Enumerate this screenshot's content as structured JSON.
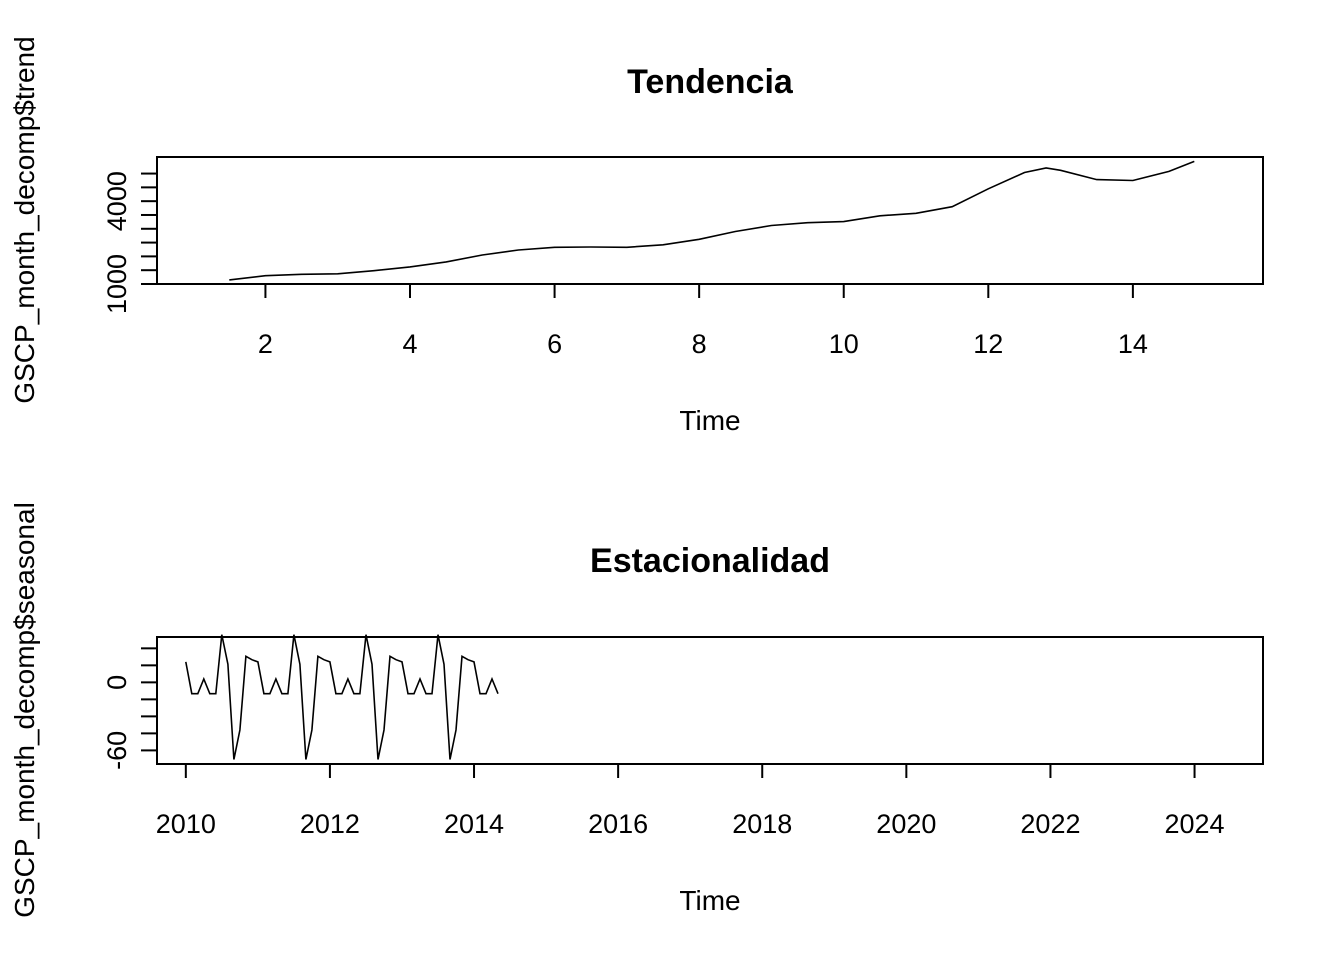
{
  "chart_data": [
    {
      "type": "line",
      "title": "Tendencia",
      "xlabel": "Time",
      "ylabel": "GSCP_month_decomp$trend",
      "xlim": [
        0.5,
        15.8
      ],
      "ylim": [
        1000,
        5600
      ],
      "x_ticks": [
        2,
        4,
        6,
        8,
        10,
        12,
        14
      ],
      "x_tick_labels": [
        "2",
        "4",
        "6",
        "8",
        "10",
        "12",
        "14"
      ],
      "y_minor_ticks": [
        1000,
        1500,
        2000,
        2500,
        3000,
        3500,
        4000,
        4500,
        5000
      ],
      "y_tick_labels": [
        {
          "value": 1000,
          "label": "1000"
        },
        {
          "value": 4000,
          "label": "4000"
        }
      ],
      "series": [
        {
          "x": [
            1.5,
            2.0,
            2.5,
            3.0,
            3.5,
            4.0,
            4.5,
            5.0,
            5.5,
            6.0,
            6.5,
            7.0,
            7.5,
            8.0,
            8.5,
            9.0,
            9.5,
            10.0,
            10.5,
            11.0,
            11.5,
            12.0,
            12.5,
            12.8,
            13.0,
            13.5,
            14.0,
            14.5,
            14.85
          ],
          "y": [
            1150,
            1300,
            1350,
            1370,
            1480,
            1620,
            1800,
            2050,
            2230,
            2330,
            2340,
            2330,
            2420,
            2620,
            2900,
            3120,
            3220,
            3260,
            3470,
            3560,
            3800,
            4450,
            5040,
            5200,
            5120,
            4780,
            4750,
            5080,
            5440
          ]
        }
      ]
    },
    {
      "type": "line",
      "title": "Estacionalidad",
      "xlabel": "Time",
      "ylabel": "GSCP_month_decomp$seasonal",
      "xlim": [
        2009.6,
        2024.95
      ],
      "ylim": [
        -72,
        40
      ],
      "x_ticks": [
        2010,
        2012,
        2014,
        2016,
        2018,
        2020,
        2022,
        2024
      ],
      "x_tick_labels": [
        "2010",
        "2012",
        "2014",
        "2016",
        "2018",
        "2020",
        "2022",
        "2024"
      ],
      "y_minor_ticks": [
        -60,
        -45,
        -30,
        -15,
        0,
        15,
        30
      ],
      "y_tick_labels": [
        {
          "value": -60,
          "label": "-60"
        },
        {
          "value": 0,
          "label": "0"
        }
      ],
      "start": 2010,
      "frequency": 12,
      "n_obs": 53,
      "seasonal_pattern": [
        18,
        -10,
        -10,
        3,
        -10,
        -10,
        42,
        16,
        -68,
        -42,
        23,
        20
      ]
    }
  ]
}
